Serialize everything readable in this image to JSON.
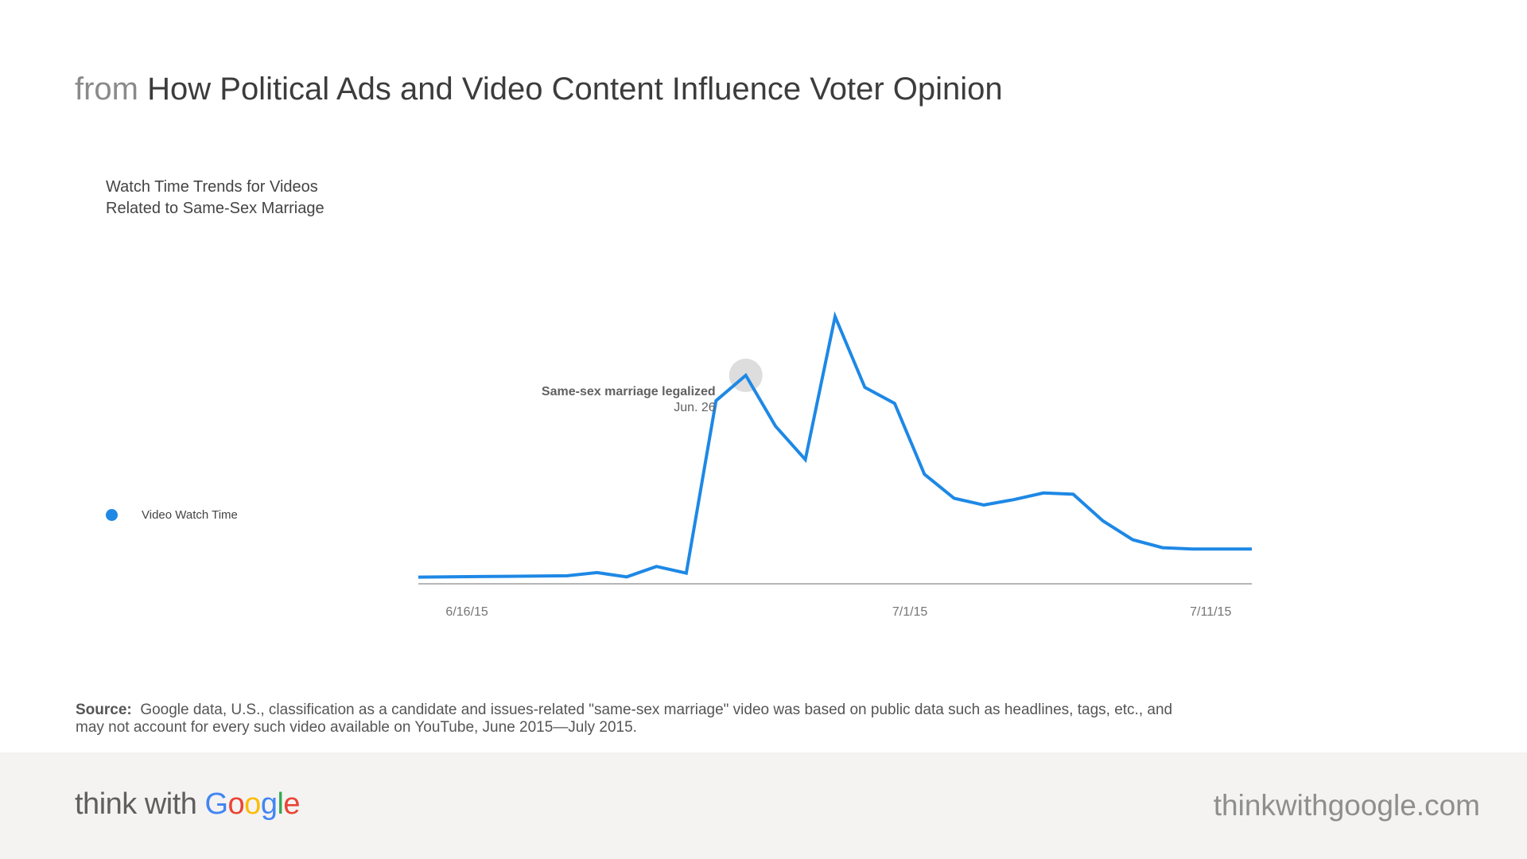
{
  "header": {
    "prefix": "from",
    "title": "How Political Ads and Video Content Influence Voter Opinion"
  },
  "chart_title_lines": [
    "Watch Time Trends for Videos",
    "Related to Same-Sex Marriage"
  ],
  "chart_data": {
    "type": "line",
    "title": "Watch Time Trends for Videos Related to Same-Sex Marriage",
    "xlabel": "",
    "ylabel": "",
    "x": [
      "2015-06-15",
      "2015-06-16",
      "2015-06-17",
      "2015-06-18",
      "2015-06-19",
      "2015-06-20",
      "2015-06-21",
      "2015-06-22",
      "2015-06-23",
      "2015-06-24",
      "2015-06-25",
      "2015-06-26",
      "2015-06-27",
      "2015-06-28",
      "2015-06-29",
      "2015-06-30",
      "2015-07-01",
      "2015-07-02",
      "2015-07-03",
      "2015-07-04",
      "2015-07-05",
      "2015-07-06",
      "2015-07-07",
      "2015-07-08",
      "2015-07-09",
      "2015-07-10",
      "2015-07-11",
      "2015-07-12",
      "2015-07-13"
    ],
    "xticks": [
      {
        "x": "2015-06-16",
        "label": "6/16/15"
      },
      {
        "x": "2015-07-01",
        "label": "7/1/15"
      },
      {
        "x": "2015-07-11",
        "label": "7/11/15"
      }
    ],
    "series": [
      {
        "name": "Video Watch Time",
        "color": "#1e88e5",
        "values": [
          2.5,
          2.6,
          2.7,
          2.8,
          2.9,
          3.0,
          4.2,
          2.6,
          6.5,
          4.0,
          68.5,
          78.0,
          59.0,
          46.5,
          100.0,
          73.5,
          67.5,
          41.0,
          32.0,
          29.5,
          31.5,
          34.0,
          33.5,
          23.5,
          16.5,
          13.5,
          13.0,
          13.0,
          13.0
        ]
      }
    ],
    "ylim": [
      0,
      100
    ],
    "grid": false,
    "legend_position": "left",
    "annotation": {
      "x": "2015-06-26",
      "label": "Same-sex marriage legalized",
      "sublabel": "Jun. 26"
    }
  },
  "source": {
    "label": "Source:",
    "text": "Google data, U.S., classification as a candidate and issues-related \"same-sex marriage\" video was based on public data such as headlines, tags, etc., and may not account for every such video available on YouTube, June 2015—July 2015."
  },
  "footer": {
    "brand_prefix": "think with",
    "brand_google": [
      "G",
      "o",
      "o",
      "g",
      "l",
      "e"
    ],
    "brand_colors": [
      "#4285f4",
      "#ea4335",
      "#fbbc05",
      "#4285f4",
      "#34a853",
      "#ea4335"
    ],
    "site": "thinkwithgoogle.com"
  }
}
